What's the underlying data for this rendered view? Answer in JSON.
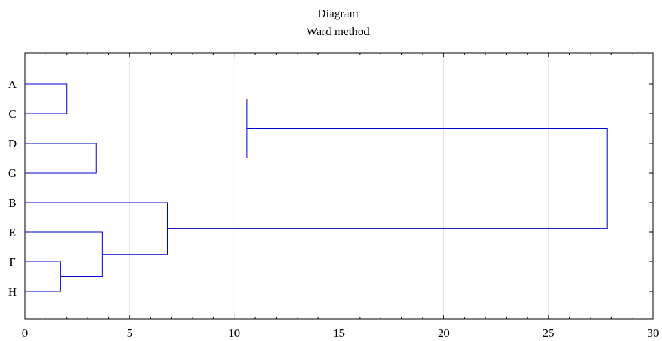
{
  "chart_data": {
    "type": "dendrogram",
    "title": "Diagram",
    "subtitle": "Ward method",
    "xlabel": "",
    "ylabel": "",
    "xlim": [
      0,
      30
    ],
    "x_ticks": [
      0,
      5,
      10,
      15,
      20,
      25,
      30
    ],
    "grid": true,
    "leaves": [
      "A",
      "C",
      "D",
      "G",
      "B",
      "E",
      "F",
      "H"
    ],
    "merges": [
      {
        "a": "A",
        "b": "C",
        "height": 2.0,
        "id": "AC"
      },
      {
        "a": "D",
        "b": "G",
        "height": 3.4,
        "id": "DG"
      },
      {
        "a": "F",
        "b": "H",
        "height": 1.7,
        "id": "FH"
      },
      {
        "a": "E",
        "b": "FH",
        "height": 3.7,
        "id": "EFH"
      },
      {
        "a": "B",
        "b": "EFH",
        "height": 6.8,
        "id": "BEFH"
      },
      {
        "a": "AC",
        "b": "DG",
        "height": 10.6,
        "id": "ACDG"
      },
      {
        "a": "ACDG",
        "b": "BEFH",
        "height": 27.8,
        "id": "ALL"
      }
    ],
    "colors": {
      "link": "#0000cc",
      "grid": "#dcdcdc",
      "frame": "#000000"
    }
  }
}
